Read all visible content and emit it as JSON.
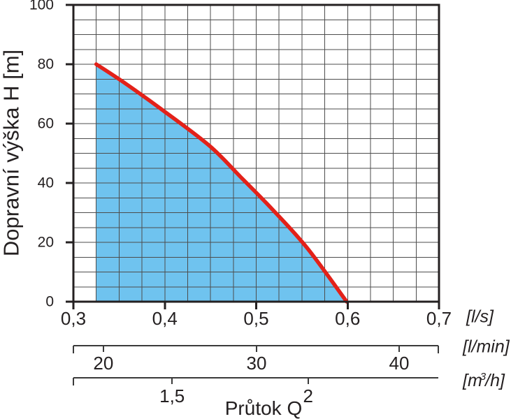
{
  "chart_data": {
    "type": "area",
    "title": "",
    "ylabel": "Dopravní výška H [m]",
    "xlabel": "Průtok Q",
    "grid": true,
    "y_axis": {
      "range": [
        0,
        100
      ],
      "minor_step": 5,
      "ticks": [
        0,
        20,
        40,
        60,
        80,
        100
      ],
      "tick_labels": [
        "0",
        "20",
        "40",
        "60",
        "80",
        "100"
      ]
    },
    "x_axis_ls": {
      "unit": "[l/s]",
      "range": [
        0.3,
        0.7
      ],
      "minor_step": 0.025,
      "ticks": [
        0.3,
        0.4,
        0.5,
        0.6,
        0.7
      ],
      "tick_labels": [
        "0,3",
        "0,4",
        "0,5",
        "0,6",
        "0,7"
      ]
    },
    "x_axis_lmin": {
      "unit": "[l/min]",
      "ticks": [
        {
          "label": "20",
          "pos": 0.082
        },
        {
          "label": "30",
          "pos": 0.501
        },
        {
          "label": "40",
          "pos": 0.891
        }
      ]
    },
    "x_axis_m3h": {
      "unit_prefix": "[m",
      "unit_sup": "3",
      "unit_suffix": "/h]",
      "ticks": [
        {
          "label": "1,5",
          "pos": 0.27
        },
        {
          "label": "2",
          "pos": 0.642
        }
      ]
    },
    "series": [
      {
        "name": "pump-head-curve",
        "x_ls": [
          0.325,
          0.357,
          0.4,
          0.449,
          0.483,
          0.518,
          0.556,
          0.599
        ],
        "h_m": [
          80,
          73.5,
          64,
          52.5,
          42,
          31,
          18,
          0
        ]
      }
    ],
    "colors": {
      "area_fill": "#6fc3ef",
      "curve": "#e32119",
      "grid": "#4d4d4d",
      "axis": "#242021",
      "secondary_axis": "#3a3a3a"
    }
  }
}
